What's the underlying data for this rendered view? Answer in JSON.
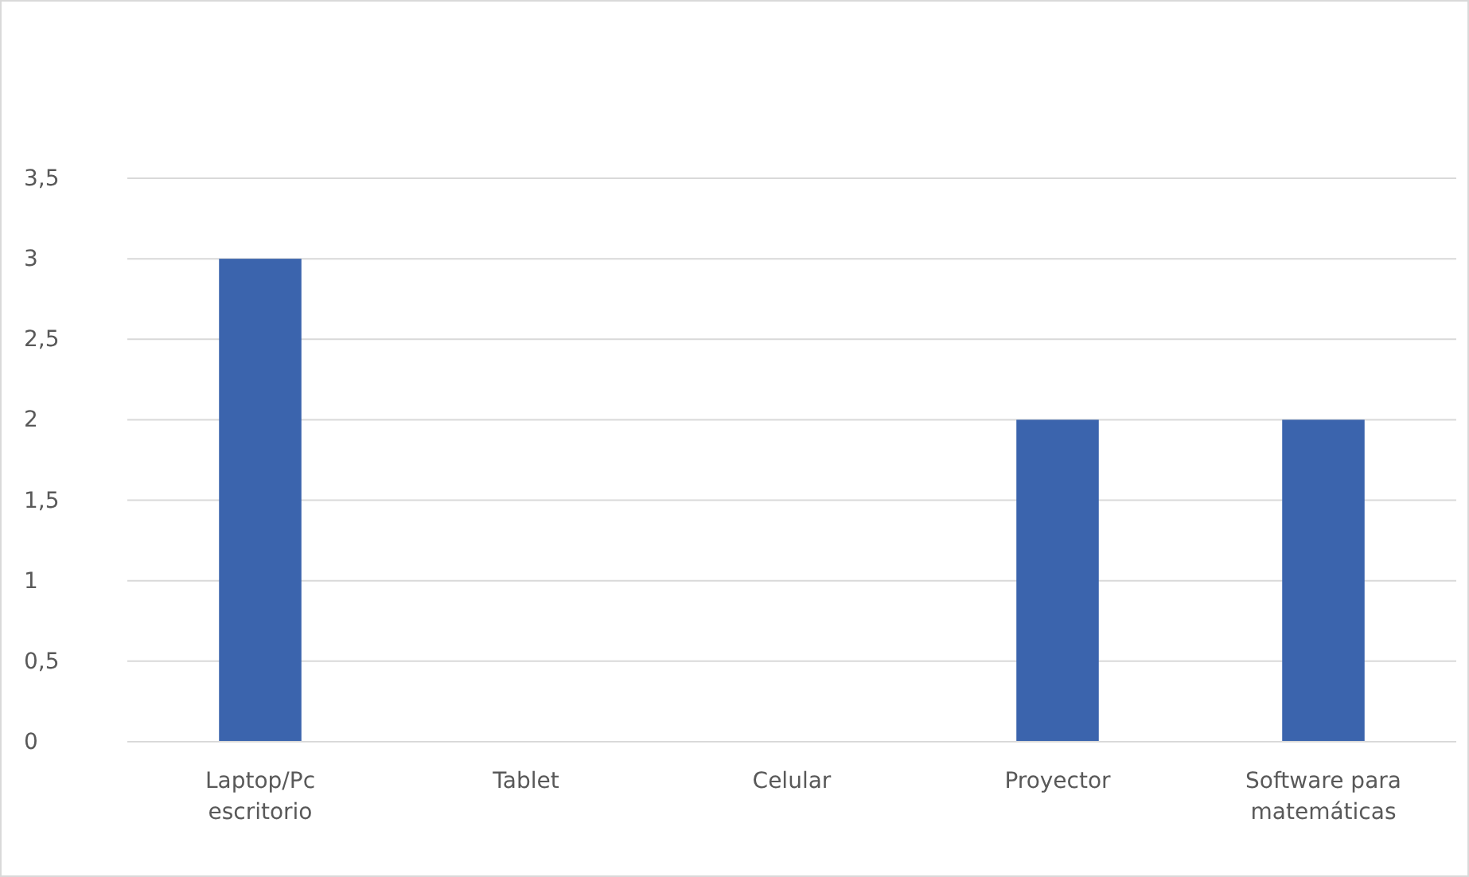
{
  "chart_data": {
    "type": "bar",
    "categories": [
      "Laptop/Pc escritorio",
      "Tablet",
      "Celular",
      "Proyector",
      "Software para matemáticas"
    ],
    "values": [
      3,
      0,
      0,
      2,
      2
    ],
    "color": "#3b64ad",
    "ylim": [
      0,
      3.5
    ],
    "yticks": [
      0,
      {
        "value": 0.5,
        "label": "0,5"
      },
      1,
      {
        "value": 1.5,
        "label": "1,5"
      },
      2,
      {
        "value": 2.5,
        "label": "2,5"
      },
      3,
      {
        "value": 3.5,
        "label": "3,5"
      }
    ],
    "grid": "y"
  }
}
